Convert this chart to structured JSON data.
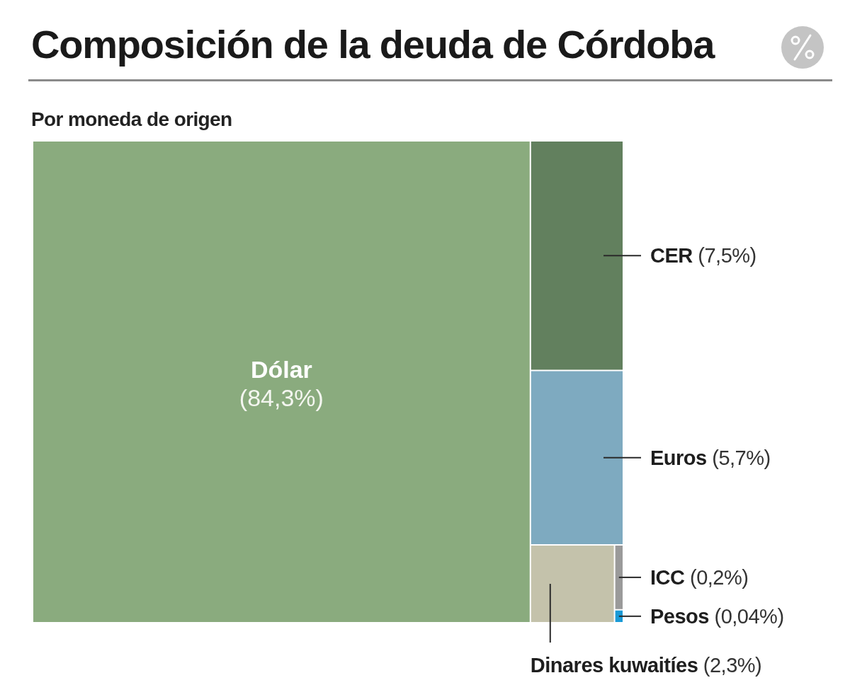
{
  "chart_data": {
    "type": "other",
    "title": "Composición de la deuda de Córdoba",
    "subtitle": "Por moneda de origen",
    "categories": [
      "Dólar",
      "CER",
      "Euros",
      "Dinares kuwaitíes",
      "ICC",
      "Pesos"
    ],
    "values": [
      84.3,
      7.5,
      5.7,
      2.3,
      0.2,
      0.04
    ],
    "value_labels": [
      "(84,3%)",
      "(7,5%)",
      "(5,7%)",
      "(2,3%)",
      "(0,2%)",
      "(0,04%)"
    ],
    "colors": [
      "#8aab7e",
      "#62805e",
      "#7eaac0",
      "#c4c2ab",
      "#9a9a9a",
      "#1a9ad6"
    ]
  }
}
